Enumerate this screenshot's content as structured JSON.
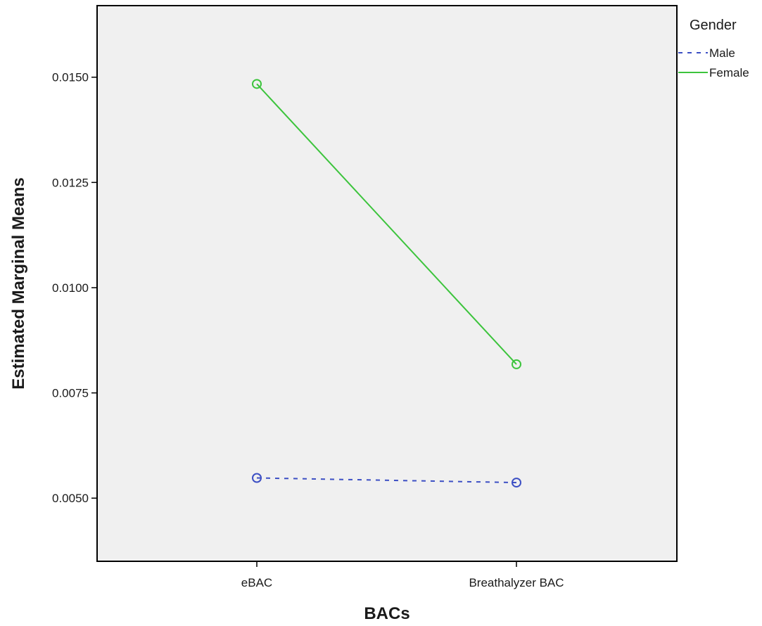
{
  "chart_data": {
    "type": "line",
    "title": "",
    "xlabel": "BACs",
    "ylabel": "Estimated Marginal Means",
    "categories": [
      "eBAC",
      "Breathalyzer BAC"
    ],
    "ylim": [
      0.0035,
      0.0167
    ],
    "yticks": [
      "0.0050",
      "0.0075",
      "0.0100",
      "0.0125",
      "0.0150"
    ],
    "grid": false,
    "legend": {
      "title": "Gender",
      "position": "top-right"
    },
    "series": [
      {
        "name": "Male",
        "values": [
          0.00548,
          0.00537
        ],
        "color": "#3c4fc4",
        "style": "dashed",
        "marker": "open-circle"
      },
      {
        "name": "Female",
        "values": [
          0.01484,
          0.00818
        ],
        "color": "#3cc43c",
        "style": "solid",
        "marker": "open-circle"
      }
    ],
    "colors": {
      "plot_background": "#f0f0f0",
      "frame": "#000000"
    }
  }
}
